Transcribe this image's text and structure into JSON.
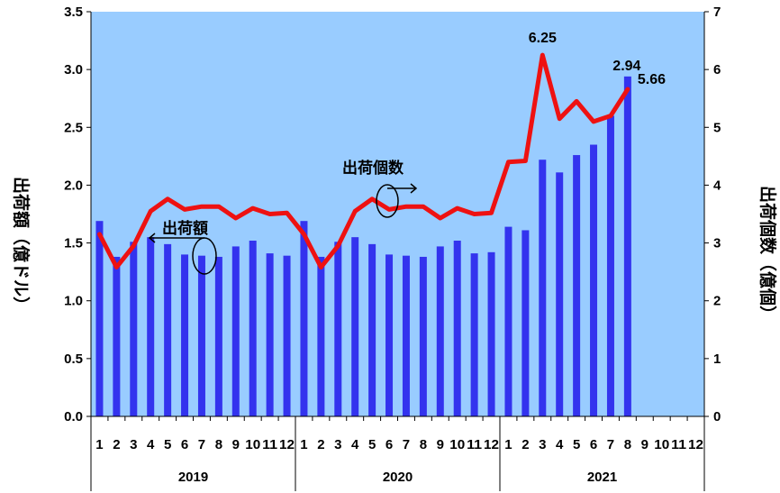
{
  "chart_data": {
    "type": "bar",
    "categories": [
      "1",
      "2",
      "3",
      "4",
      "5",
      "6",
      "7",
      "8",
      "9",
      "10",
      "11",
      "12",
      "1",
      "2",
      "3",
      "4",
      "5",
      "6",
      "7",
      "8",
      "9",
      "10",
      "11",
      "12",
      "1",
      "2",
      "3",
      "4",
      "5",
      "6",
      "7",
      "8",
      "9",
      "10",
      "11",
      "12"
    ],
    "years": [
      "2019",
      "2020",
      "2021"
    ],
    "series": [
      {
        "type": "bar",
        "axis": "left",
        "color": "#3333ee",
        "values": [
          1.69,
          1.38,
          1.51,
          1.55,
          1.49,
          1.4,
          1.39,
          1.38,
          1.47,
          1.52,
          1.41,
          1.39,
          1.69,
          1.38,
          1.51,
          1.55,
          1.49,
          1.4,
          1.39,
          1.38,
          1.47,
          1.52,
          1.41,
          1.42,
          1.64,
          1.61,
          2.22,
          2.11,
          2.26,
          2.35,
          2.6,
          2.94,
          null,
          null,
          null,
          null
        ]
      },
      {
        "type": "line",
        "axis": "right",
        "color": "#ee1111",
        "values": [
          3.15,
          2.58,
          2.95,
          3.55,
          3.76,
          3.58,
          3.63,
          3.63,
          3.43,
          3.6,
          3.5,
          3.52,
          3.15,
          2.58,
          2.95,
          3.55,
          3.76,
          3.58,
          3.63,
          3.63,
          3.43,
          3.6,
          3.5,
          3.52,
          4.4,
          4.42,
          6.25,
          5.15,
          5.45,
          5.1,
          5.2,
          5.66,
          null,
          null,
          null,
          null
        ]
      }
    ],
    "yaxis_left": {
      "label": "出荷額（億ドル）",
      "min": 0,
      "max": 3.5,
      "ticks": [
        "0.0",
        "0.5",
        "1.0",
        "1.5",
        "2.0",
        "2.5",
        "3.0",
        "3.5"
      ]
    },
    "yaxis_right": {
      "label": "出荷個数（億個）",
      "min": 0,
      "max": 7,
      "ticks": [
        "0",
        "1",
        "2",
        "3",
        "4",
        "5",
        "6",
        "7"
      ]
    },
    "data_labels": [
      {
        "series": 1,
        "index": 26,
        "text": "6.25"
      },
      {
        "series": 0,
        "index": 31,
        "text": "2.94"
      },
      {
        "series": 1,
        "index": 31,
        "text": "5.66"
      }
    ],
    "annotations": [
      {
        "text": "出荷額",
        "points_to": "bars"
      },
      {
        "text": "出荷個数",
        "points_to": "line"
      }
    ],
    "plot_background": "#99ccff",
    "grid": false
  }
}
